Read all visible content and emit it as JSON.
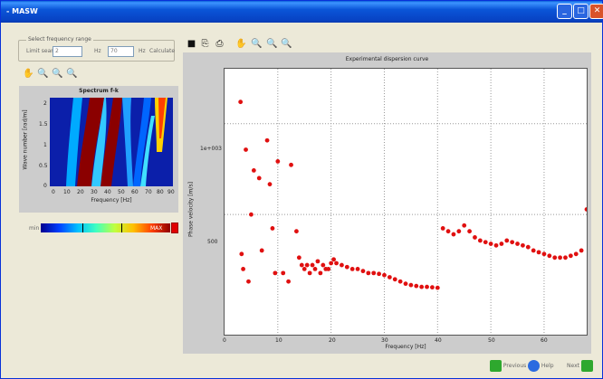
{
  "window": {
    "title": "- MASW",
    "min": "_",
    "max": "□",
    "close": "✕"
  },
  "frequency_range": {
    "group_title": "Select frequency range",
    "limit_label": "Limit search",
    "from_value": "2",
    "hz1": "Hz",
    "to_value": "70",
    "hz2": "Hz",
    "calculate_label": "Calculate"
  },
  "spectrum": {
    "title": "Spectrum f-k",
    "xlabel": "Frequency [Hz]",
    "ylabel": "Wave number [rad/m]",
    "xticks": [
      "0",
      "10",
      "20",
      "30",
      "40",
      "50",
      "60",
      "70",
      "80",
      "90"
    ],
    "yticks": [
      "0",
      "0.5",
      "1",
      "1.5",
      "2"
    ],
    "colorbar_min": "min",
    "colorbar_max": "MAX"
  },
  "dispersion": {
    "title": "Experimental dispersion curve",
    "xlabel": "Frequency [Hz]",
    "ylabel": "Phase velocity [m/s]",
    "xticks": [
      "0",
      "10",
      "20",
      "30",
      "40",
      "50",
      "60"
    ],
    "yticks": [
      "1e+003",
      "500"
    ]
  },
  "chart_data": {
    "type": "scatter",
    "title": "Experimental dispersion curve",
    "xlabel": "Frequency [Hz]",
    "ylabel": "Phase velocity [m/s]",
    "xlim": [
      0,
      68
    ],
    "grid": true,
    "x": [
      3,
      3.2,
      3.5,
      4,
      4.5,
      5,
      5.5,
      6.5,
      7,
      8,
      8.5,
      9,
      9.5,
      10,
      11,
      12,
      12.5,
      13.5,
      14,
      14.5,
      15,
      15.5,
      16,
      16.5,
      17,
      17.5,
      18,
      18.5,
      19,
      19.5,
      20,
      20.5,
      21,
      22,
      23,
      24,
      25,
      26,
      27,
      28,
      29,
      30,
      31,
      32,
      33,
      34,
      35,
      36,
      37,
      38,
      39,
      40,
      41,
      42,
      43,
      44,
      45,
      46,
      47,
      48,
      49,
      50,
      51,
      52,
      53,
      54,
      55,
      56,
      57,
      58,
      59,
      60,
      61,
      62,
      63,
      64,
      65,
      66,
      67,
      68
    ],
    "y": [
      1180,
      370,
      330,
      820,
      300,
      500,
      700,
      660,
      380,
      880,
      630,
      450,
      320,
      750,
      320,
      300,
      730,
      440,
      360,
      340,
      330,
      340,
      320,
      340,
      330,
      350,
      320,
      340,
      330,
      330,
      345,
      355,
      345,
      340,
      335,
      330,
      330,
      325,
      320,
      320,
      318,
      315,
      310,
      305,
      300,
      295,
      292,
      290,
      288,
      288,
      287,
      286,
      450,
      440,
      430,
      440,
      460,
      440,
      420,
      410,
      405,
      400,
      395,
      400,
      410,
      405,
      400,
      395,
      390,
      380,
      375,
      370,
      365,
      360,
      360,
      360,
      365,
      370,
      380,
      520
    ]
  }
}
